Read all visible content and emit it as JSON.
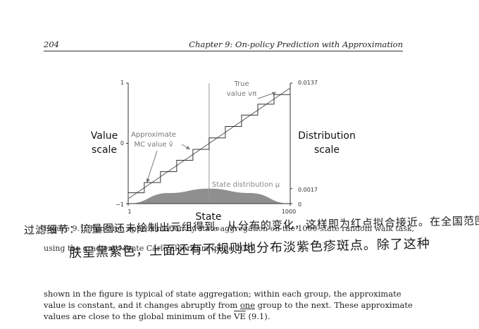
{
  "header": {
    "page_number": "204",
    "chapter_title": "Chapter 9: On-policy Prediction with Approximation"
  },
  "figure": {
    "left_axis_label_line1": "Value",
    "left_axis_label_line2": "scale",
    "right_axis_label_line1": "Distribution",
    "right_axis_label_line2": "scale",
    "x_axis_label": "State",
    "left_ticks": [
      "1",
      "0",
      "−1"
    ],
    "right_ticks": [
      "0.0137",
      "0.0017",
      "0"
    ],
    "x_ticks": [
      "1",
      "1000"
    ],
    "true_value_label_line1": "True",
    "true_value_label_line2": "value vπ",
    "approx_label_line1": "Approximate",
    "approx_label_line2": "MC value v̂",
    "distribution_label": "State distribution μ"
  },
  "chart_data": {
    "type": "line",
    "xlabel": "State",
    "ylabel": "Value scale",
    "xlim": [
      1,
      1000
    ],
    "ylim": [
      -1,
      1
    ],
    "series": [
      {
        "name": "True value vπ",
        "x": [
          1,
          1000
        ],
        "y": [
          -0.92,
          0.92
        ]
      },
      {
        "name": "Approximate MC value v̂",
        "x": [
          50,
          150,
          250,
          350,
          450,
          550,
          650,
          750,
          850,
          950
        ],
        "y": [
          -0.82,
          -0.65,
          -0.47,
          -0.28,
          -0.1,
          0.09,
          0.28,
          0.47,
          0.65,
          0.81
        ]
      },
      {
        "name": "State distribution μ",
        "x": [
          1,
          250,
          500,
          750,
          1000
        ],
        "y": [
          0,
          0.0012,
          0.0017,
          0.0012,
          0
        ]
      }
    ],
    "right_axis": {
      "label": "Distribution scale",
      "ticks": [
        0,
        0.0017,
        0.0137
      ]
    },
    "grid": false
  },
  "caption": {
    "line1": "Figure 9.1: Function approximation by state aggregation on the 1000-state random walk task,",
    "line2": "using the gradient Monte Carlo algorithm (page 202)."
  },
  "handwriting": {
    "line1": "过滤细节：流量图还未绘制出元组得到。从分布的变化，这样即为红点拟合接近。在全国范围内经济发展",
    "line2": "肤呈黑紫色，上面还有不规则地分布淡紫色疹斑点。除了这种"
  },
  "body": {
    "line1": "shown in the figure is typical of state aggregation; within each group, the approximate",
    "line2_before": "value is constant, and it changes abruptly from ",
    "line2_underlined": "one",
    "line2_after": " group to the next. These approximate",
    "line3_before": "values are close to the global minimum of the ",
    "line3_ve": "VE",
    "line3_after": " (9.1)."
  }
}
